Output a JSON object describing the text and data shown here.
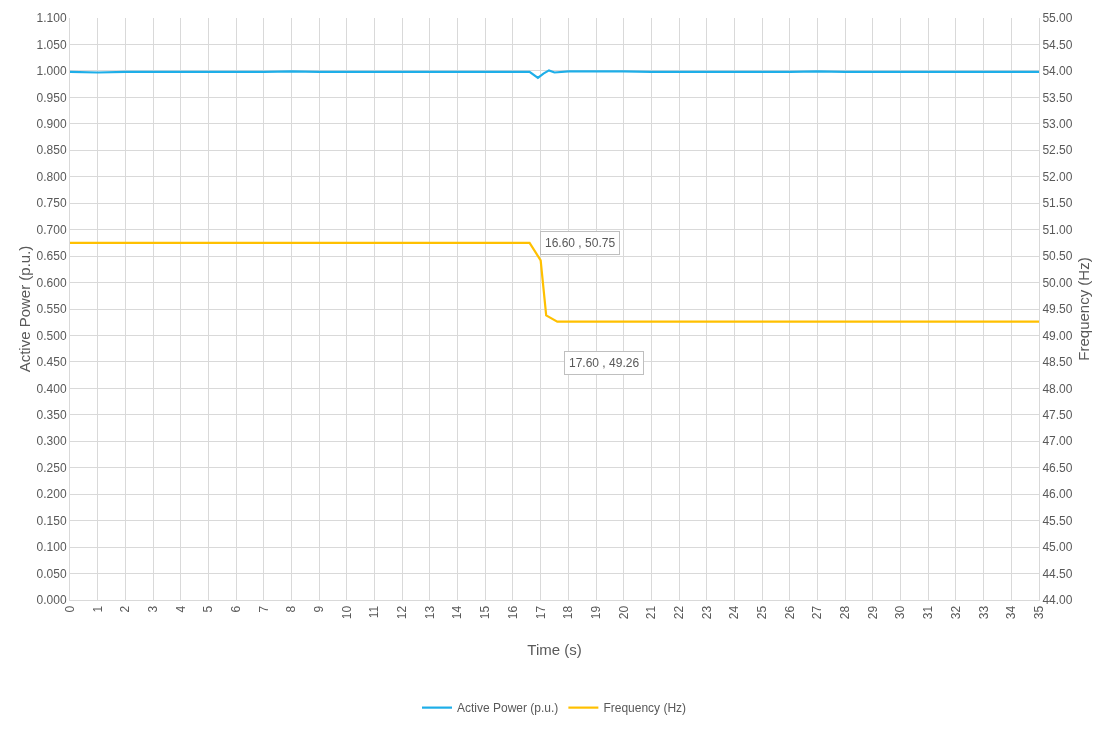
{
  "chart_data": {
    "type": "line",
    "xlabel": "Time (s)",
    "ylabel": "Active Power (p.u.)",
    "y2label": "Frequency (Hz)",
    "xlim": [
      0,
      35
    ],
    "xticks": [
      0,
      1,
      2,
      3,
      4,
      5,
      6,
      7,
      8,
      9,
      10,
      11,
      12,
      13,
      14,
      15,
      16,
      17,
      18,
      19,
      20,
      21,
      22,
      23,
      24,
      25,
      26,
      27,
      28,
      29,
      30,
      31,
      32,
      33,
      34,
      35
    ],
    "ylim": [
      0,
      1.1
    ],
    "yticks": [
      {
        "value": 0,
        "label": "0.000"
      },
      {
        "value": 0.05,
        "label": "0.050"
      },
      {
        "value": 0.1,
        "label": "0.100"
      },
      {
        "value": 0.15,
        "label": "0.150"
      },
      {
        "value": 0.2,
        "label": "0.200"
      },
      {
        "value": 0.25,
        "label": "0.250"
      },
      {
        "value": 0.3,
        "label": "0.300"
      },
      {
        "value": 0.35,
        "label": "0.350"
      },
      {
        "value": 0.4,
        "label": "0.400"
      },
      {
        "value": 0.45,
        "label": "0.450"
      },
      {
        "value": 0.5,
        "label": "0.500"
      },
      {
        "value": 0.55,
        "label": "0.550"
      },
      {
        "value": 0.6,
        "label": "0.600"
      },
      {
        "value": 0.65,
        "label": "0.650"
      },
      {
        "value": 0.7,
        "label": "0.700"
      },
      {
        "value": 0.75,
        "label": "0.750"
      },
      {
        "value": 0.8,
        "label": "0.800"
      },
      {
        "value": 0.85,
        "label": "0.850"
      },
      {
        "value": 0.9,
        "label": "0.900"
      },
      {
        "value": 0.95,
        "label": "0.950"
      },
      {
        "value": 1,
        "label": "1.000"
      },
      {
        "value": 1.05,
        "label": "1.050"
      },
      {
        "value": 1.1,
        "label": "1.100"
      }
    ],
    "y2lim": [
      44,
      55
    ],
    "y2ticks": [
      {
        "value": 44,
        "label": "44.00"
      },
      {
        "value": 44.5,
        "label": "44.50"
      },
      {
        "value": 45,
        "label": "45.00"
      },
      {
        "value": 45.5,
        "label": "45.50"
      },
      {
        "value": 46,
        "label": "46.00"
      },
      {
        "value": 46.5,
        "label": "46.50"
      },
      {
        "value": 47,
        "label": "47.00"
      },
      {
        "value": 47.5,
        "label": "47.50"
      },
      {
        "value": 48,
        "label": "48.00"
      },
      {
        "value": 48.5,
        "label": "48.50"
      },
      {
        "value": 49,
        "label": "49.00"
      },
      {
        "value": 49.5,
        "label": "49.50"
      },
      {
        "value": 50,
        "label": "50.00"
      },
      {
        "value": 50.5,
        "label": "50.50"
      },
      {
        "value": 51,
        "label": "51.00"
      },
      {
        "value": 51.5,
        "label": "51.50"
      },
      {
        "value": 52,
        "label": "52.00"
      },
      {
        "value": 52.5,
        "label": "52.50"
      },
      {
        "value": 53,
        "label": "53.00"
      },
      {
        "value": 53.5,
        "label": "53.50"
      },
      {
        "value": 54,
        "label": "54.00"
      },
      {
        "value": 54.5,
        "label": "54.50"
      },
      {
        "value": 55,
        "label": "55.00"
      }
    ],
    "grid": true,
    "legend": "bottom",
    "marker": "none",
    "line_style": "solid",
    "series": [
      {
        "name": "Active Power (p.u.)",
        "color": "#1eaee8",
        "x": [
          0,
          1,
          2,
          3,
          4,
          5,
          6,
          7,
          8,
          9,
          10,
          11,
          12,
          13,
          14,
          15,
          16,
          16.6,
          16.9,
          17.1,
          17.3,
          17.5,
          18,
          19,
          20,
          21,
          22,
          23,
          24,
          25,
          26,
          27,
          28,
          29,
          30,
          31,
          32,
          33,
          34,
          35
        ],
        "values": [
          0.998,
          0.997,
          0.998,
          0.998,
          0.998,
          0.998,
          0.998,
          0.998,
          0.999,
          0.998,
          0.998,
          0.998,
          0.998,
          0.998,
          0.998,
          0.998,
          0.998,
          0.998,
          0.987,
          0.995,
          1.001,
          0.997,
          0.999,
          0.999,
          0.999,
          0.998,
          0.998,
          0.998,
          0.998,
          0.998,
          0.998,
          0.999,
          0.998,
          0.998,
          0.998,
          0.998,
          0.998,
          0.998,
          0.998,
          0.998
        ]
      },
      {
        "name": "Frequency (Hz)",
        "color": "#ffc000",
        "axis": "y2",
        "x": [
          0,
          16.6,
          17,
          17.2,
          17.6,
          35
        ],
        "values": [
          50.75,
          50.75,
          50.42,
          49.38,
          49.26,
          49.26
        ]
      }
    ],
    "annotations": [
      "16.60 , 50.75",
      "17.60 , 49.26"
    ]
  }
}
